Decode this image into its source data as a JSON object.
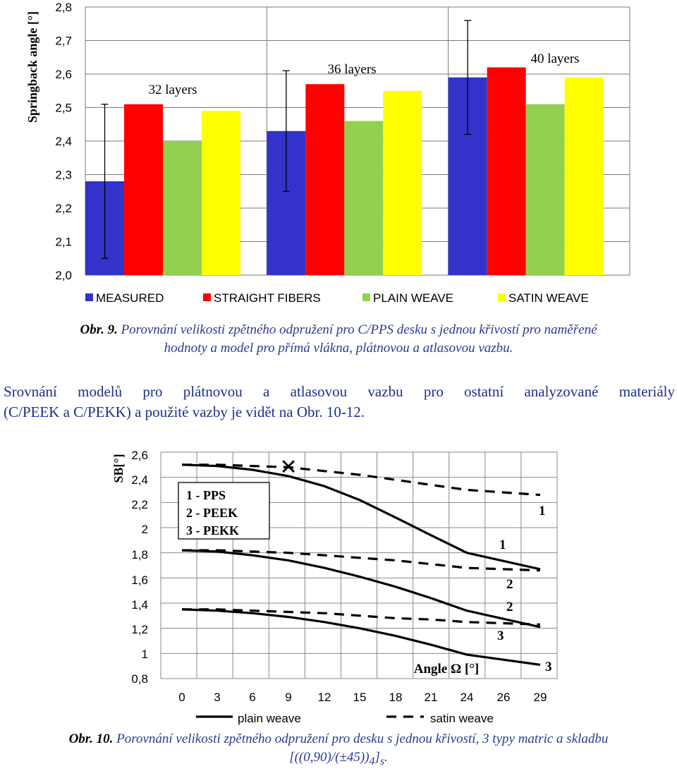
{
  "chart_data": [
    {
      "type": "bar",
      "ylabel": "Springback angle [°]",
      "ylim": [
        2.0,
        2.8
      ],
      "yticks": [
        "2,0",
        "2,1",
        "2,2",
        "2,3",
        "2,4",
        "2,5",
        "2,6",
        "2,7",
        "2,8"
      ],
      "categories": [
        "32 layers",
        "36 layers",
        "40 layers"
      ],
      "series": [
        {
          "name": "MEASURED",
          "color": "#3333cc",
          "values": [
            2.28,
            2.43,
            2.59
          ],
          "error": [
            [
              2.05,
              2.51
            ],
            [
              2.25,
              2.61
            ],
            [
              2.42,
              2.76
            ]
          ]
        },
        {
          "name": "STRAIGHT FIBERS",
          "color": "#ff0000",
          "values": [
            2.51,
            2.57,
            2.62
          ]
        },
        {
          "name": "PLAIN WEAVE",
          "color": "#92d050",
          "values": [
            2.4,
            2.46,
            2.51
          ]
        },
        {
          "name": "SATIN WEAVE",
          "color": "#ffff00",
          "values": [
            2.49,
            2.55,
            2.59
          ]
        }
      ],
      "grid": true,
      "legend": "bottom"
    },
    {
      "type": "line",
      "ylabel": "SB[°]",
      "xlabel": "Angle Ω [°]",
      "xticks": [
        "0",
        "3",
        "6",
        "9",
        "12",
        "15",
        "18",
        "21",
        "24",
        "26",
        "29"
      ],
      "yticks": [
        "2,6",
        "2,4",
        "2,2",
        "2",
        "1,8",
        "1,6",
        "1,4",
        "1,2",
        "1",
        "0,8"
      ],
      "ylim": [
        0.8,
        2.6
      ],
      "legend_box": [
        "1 - PPS",
        "2 - PEEK",
        "3 - PEKK"
      ],
      "legend_bottom": [
        "plain weave",
        "satin weave"
      ],
      "series": [
        {
          "name": "PPS plain",
          "style": "solid",
          "label": "1",
          "values": [
            2.5,
            2.49,
            2.46,
            2.41,
            2.33,
            2.22,
            2.08,
            1.94,
            1.8,
            1.67
          ]
        },
        {
          "name": "PPS satin",
          "style": "dashed",
          "label": "1",
          "values": [
            2.5,
            2.5,
            2.49,
            2.48,
            2.45,
            2.42,
            2.38,
            2.34,
            2.3,
            2.26
          ]
        },
        {
          "name": "PEEK plain",
          "style": "solid",
          "label": "2",
          "values": [
            1.82,
            1.81,
            1.78,
            1.74,
            1.68,
            1.61,
            1.53,
            1.44,
            1.34,
            1.21
          ]
        },
        {
          "name": "PEEK satin",
          "style": "dashed",
          "label": "2",
          "values": [
            1.82,
            1.82,
            1.81,
            1.8,
            1.78,
            1.76,
            1.74,
            1.71,
            1.68,
            1.66
          ]
        },
        {
          "name": "PEKK plain",
          "style": "solid",
          "label": "3",
          "values": [
            1.35,
            1.34,
            1.32,
            1.29,
            1.25,
            1.2,
            1.14,
            1.07,
            0.99,
            0.91
          ]
        },
        {
          "name": "PEKK satin",
          "style": "dashed",
          "label": "3",
          "values": [
            1.35,
            1.35,
            1.34,
            1.33,
            1.32,
            1.3,
            1.28,
            1.27,
            1.25,
            1.23
          ]
        }
      ],
      "marker": {
        "symbol": "×",
        "x": 9,
        "y": 2.49
      }
    }
  ],
  "captions": {
    "fig9_label": "Obr. 9.",
    "fig9_line1": "Porovnání velikosti zpětného odpružení pro C/PPS desku s jednou křivostí pro naměřené",
    "fig9_line2": "hodnoty a model pro přímá vlákna, plátnovou a atlasovou vazbu.",
    "fig10_label": "Obr. 10.",
    "fig10_line1": "Porovnání velikosti zpětného odpružení pro desku s jednou křivostí, 3 typy matric a skladbu",
    "fig10_line2_base": "[((0,90)/(±45))",
    "fig10_line2_sub1": "4",
    "fig10_line2_mid": "]",
    "fig10_line2_sub2": "s",
    "fig10_line2_end": "."
  },
  "paragraph": {
    "line1": "Srovnání modelů pro plátnovou a atlasovou vazbu pro ostatní analyzované materiály",
    "line2": "(C/PEEK a C/PEKK) a použité vazby je vidět na Obr. 10-12."
  },
  "colors": {
    "text_blue": "#1d2f8c",
    "caption_blue": "#2b3a90"
  }
}
